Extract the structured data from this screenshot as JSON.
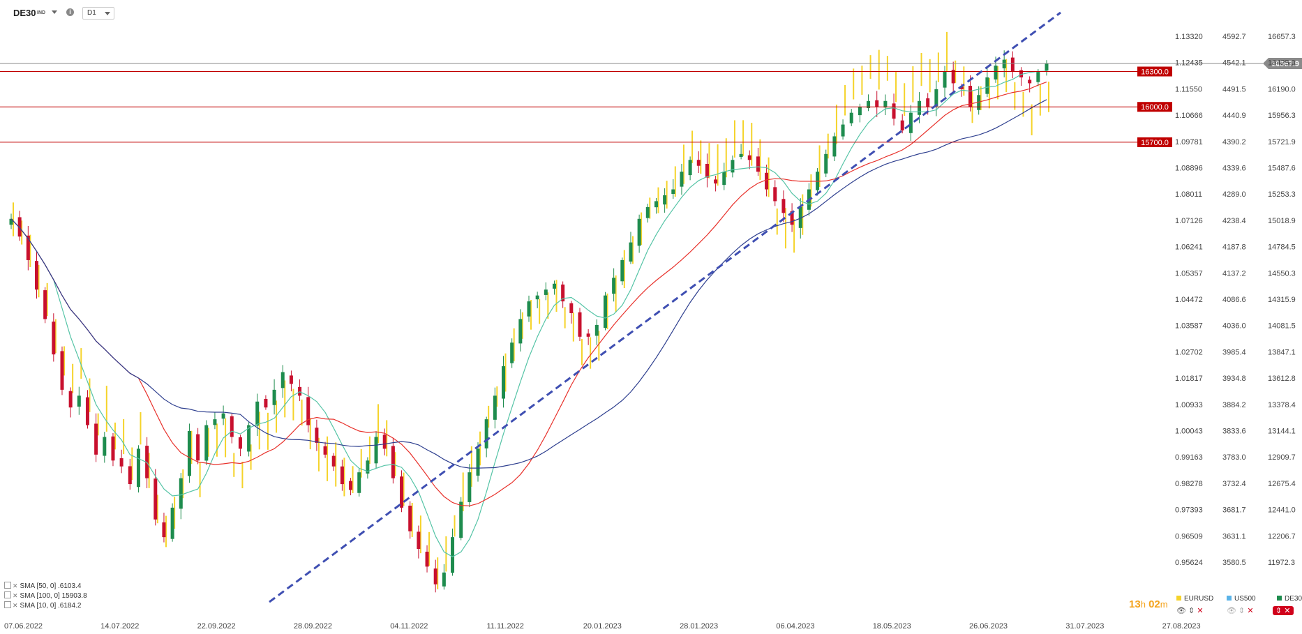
{
  "header": {
    "symbol": "DE30",
    "symbol_sub": "IND",
    "info_icon": "i",
    "timeframe": "D1"
  },
  "colors": {
    "up": "#1e8c4e",
    "down": "#c8102e",
    "overlay": "#f5d32a",
    "sma50": "#55c4a6",
    "sma100": "#e8322c",
    "sma200": "#2e3f8f",
    "trendline": "#3f4fb2",
    "level": "#c00000",
    "current": "#8a8a8a"
  },
  "chart_data": {
    "type": "candlestick",
    "instrument": "DE30",
    "timeframe": "D1",
    "ylim": [
      11700,
      16800
    ],
    "x_ticks": [
      "07.06.2022",
      "14.07.2022",
      "22.09.2022",
      "28.09.2022",
      "04.11.2022",
      "11.11.2022",
      "20.01.2023",
      "28.01.2023",
      "06.04.2023",
      "18.05.2023",
      "26.06.2023",
      "31.07.2023",
      "27.08.2023"
    ],
    "y_ticks": {
      "de30": [
        "16657.3",
        "16425.0",
        "16190.0",
        "15956.3",
        "15721.9",
        "15487.6",
        "15253.3",
        "15018.9",
        "14784.5",
        "14550.3",
        "14315.9",
        "14081.5",
        "13847.1",
        "13612.8",
        "13378.4",
        "13144.1",
        "12909.7",
        "12675.4",
        "12441.0",
        "12206.7",
        "11972.3"
      ],
      "us500": [
        "4592.7",
        "4542.1",
        "4491.5",
        "4440.9",
        "4390.2",
        "4339.6",
        "4289.0",
        "4238.4",
        "4187.8",
        "4137.2",
        "4086.6",
        "4036.0",
        "3985.4",
        "3934.8",
        "3884.2",
        "3833.6",
        "3783.0",
        "3732.4",
        "3681.7",
        "3631.1",
        "3580.5"
      ],
      "eurusd": [
        "1.13320",
        "1.12435",
        "1.11550",
        "1.10666",
        "1.09781",
        "1.08896",
        "1.08011",
        "1.07126",
        "1.06241",
        "1.05357",
        "1.04472",
        "1.03587",
        "1.02702",
        "1.01817",
        "1.00933",
        "1.00043",
        "0.99163",
        "0.98278",
        "0.97393",
        "0.96509",
        "0.95624"
      ]
    },
    "horizontal_levels": [
      {
        "label": "16300.0",
        "value": 16300.0
      },
      {
        "label": "16000.0",
        "value": 16000.0
      },
      {
        "label": "15700.0",
        "value": 15700.0
      }
    ],
    "current_price": {
      "label": "16367.9",
      "value": 16367.9
    },
    "trendline": {
      "start": {
        "date": "2022-09-28",
        "value": 11800
      },
      "end": {
        "date": "2023-07-31",
        "value": 16800
      }
    },
    "candles_close": [
      15050,
      14900,
      14700,
      14450,
      14200,
      13900,
      13600,
      13450,
      13550,
      13300,
      13050,
      13200,
      13000,
      12950,
      12800,
      13100,
      12850,
      12500,
      12350,
      12600,
      12850,
      13250,
      13000,
      13300,
      13350,
      13400,
      13200,
      13100,
      13300,
      13500,
      13450,
      13600,
      13750,
      13650,
      13550,
      13300,
      13150,
      13050,
      12950,
      12800,
      12750,
      12900,
      13000,
      13200,
      13100,
      12850,
      12600,
      12400,
      12250,
      12100,
      11950,
      12050,
      12350,
      12650,
      12900,
      13100,
      13350,
      13550,
      13800,
      14000,
      14200,
      14350,
      14400,
      14450,
      14500,
      14350,
      14250,
      14050,
      14050,
      14150,
      14400,
      14550,
      14700,
      14850,
      15050,
      15150,
      15200,
      15250,
      15300,
      15450,
      15550,
      15500,
      15400,
      15350,
      15450,
      15550,
      15600,
      15550,
      15450,
      15300,
      15200,
      15100,
      15000,
      15150,
      15300,
      15450,
      15600,
      15750,
      15850,
      15950,
      16000,
      16050,
      16000,
      16050,
      15900,
      15800,
      15950,
      16050,
      16000,
      16150,
      16300,
      16200,
      16150,
      16000,
      16100,
      16250,
      16350,
      16400,
      16300,
      16250,
      16200,
      16300,
      16367.9
    ],
    "sma": [
      {
        "name": "SMA [50, 0]",
        "value": ".6103.4"
      },
      {
        "name": "SMA [100, 0]",
        "value": "15903.8"
      },
      {
        "name": "SMA [10, 0]",
        "value": ".6184.2"
      }
    ]
  },
  "footer": {
    "countdown_h": "13",
    "countdown_h_unit": "h",
    "countdown_m": "02",
    "countdown_m_unit": "m",
    "instruments": [
      {
        "name": "EURUSD",
        "color": "#f5d32a"
      },
      {
        "name": "US500",
        "color": "#5ab3e8"
      },
      {
        "name": "DE30",
        "color": "#1e8c4e"
      }
    ]
  }
}
